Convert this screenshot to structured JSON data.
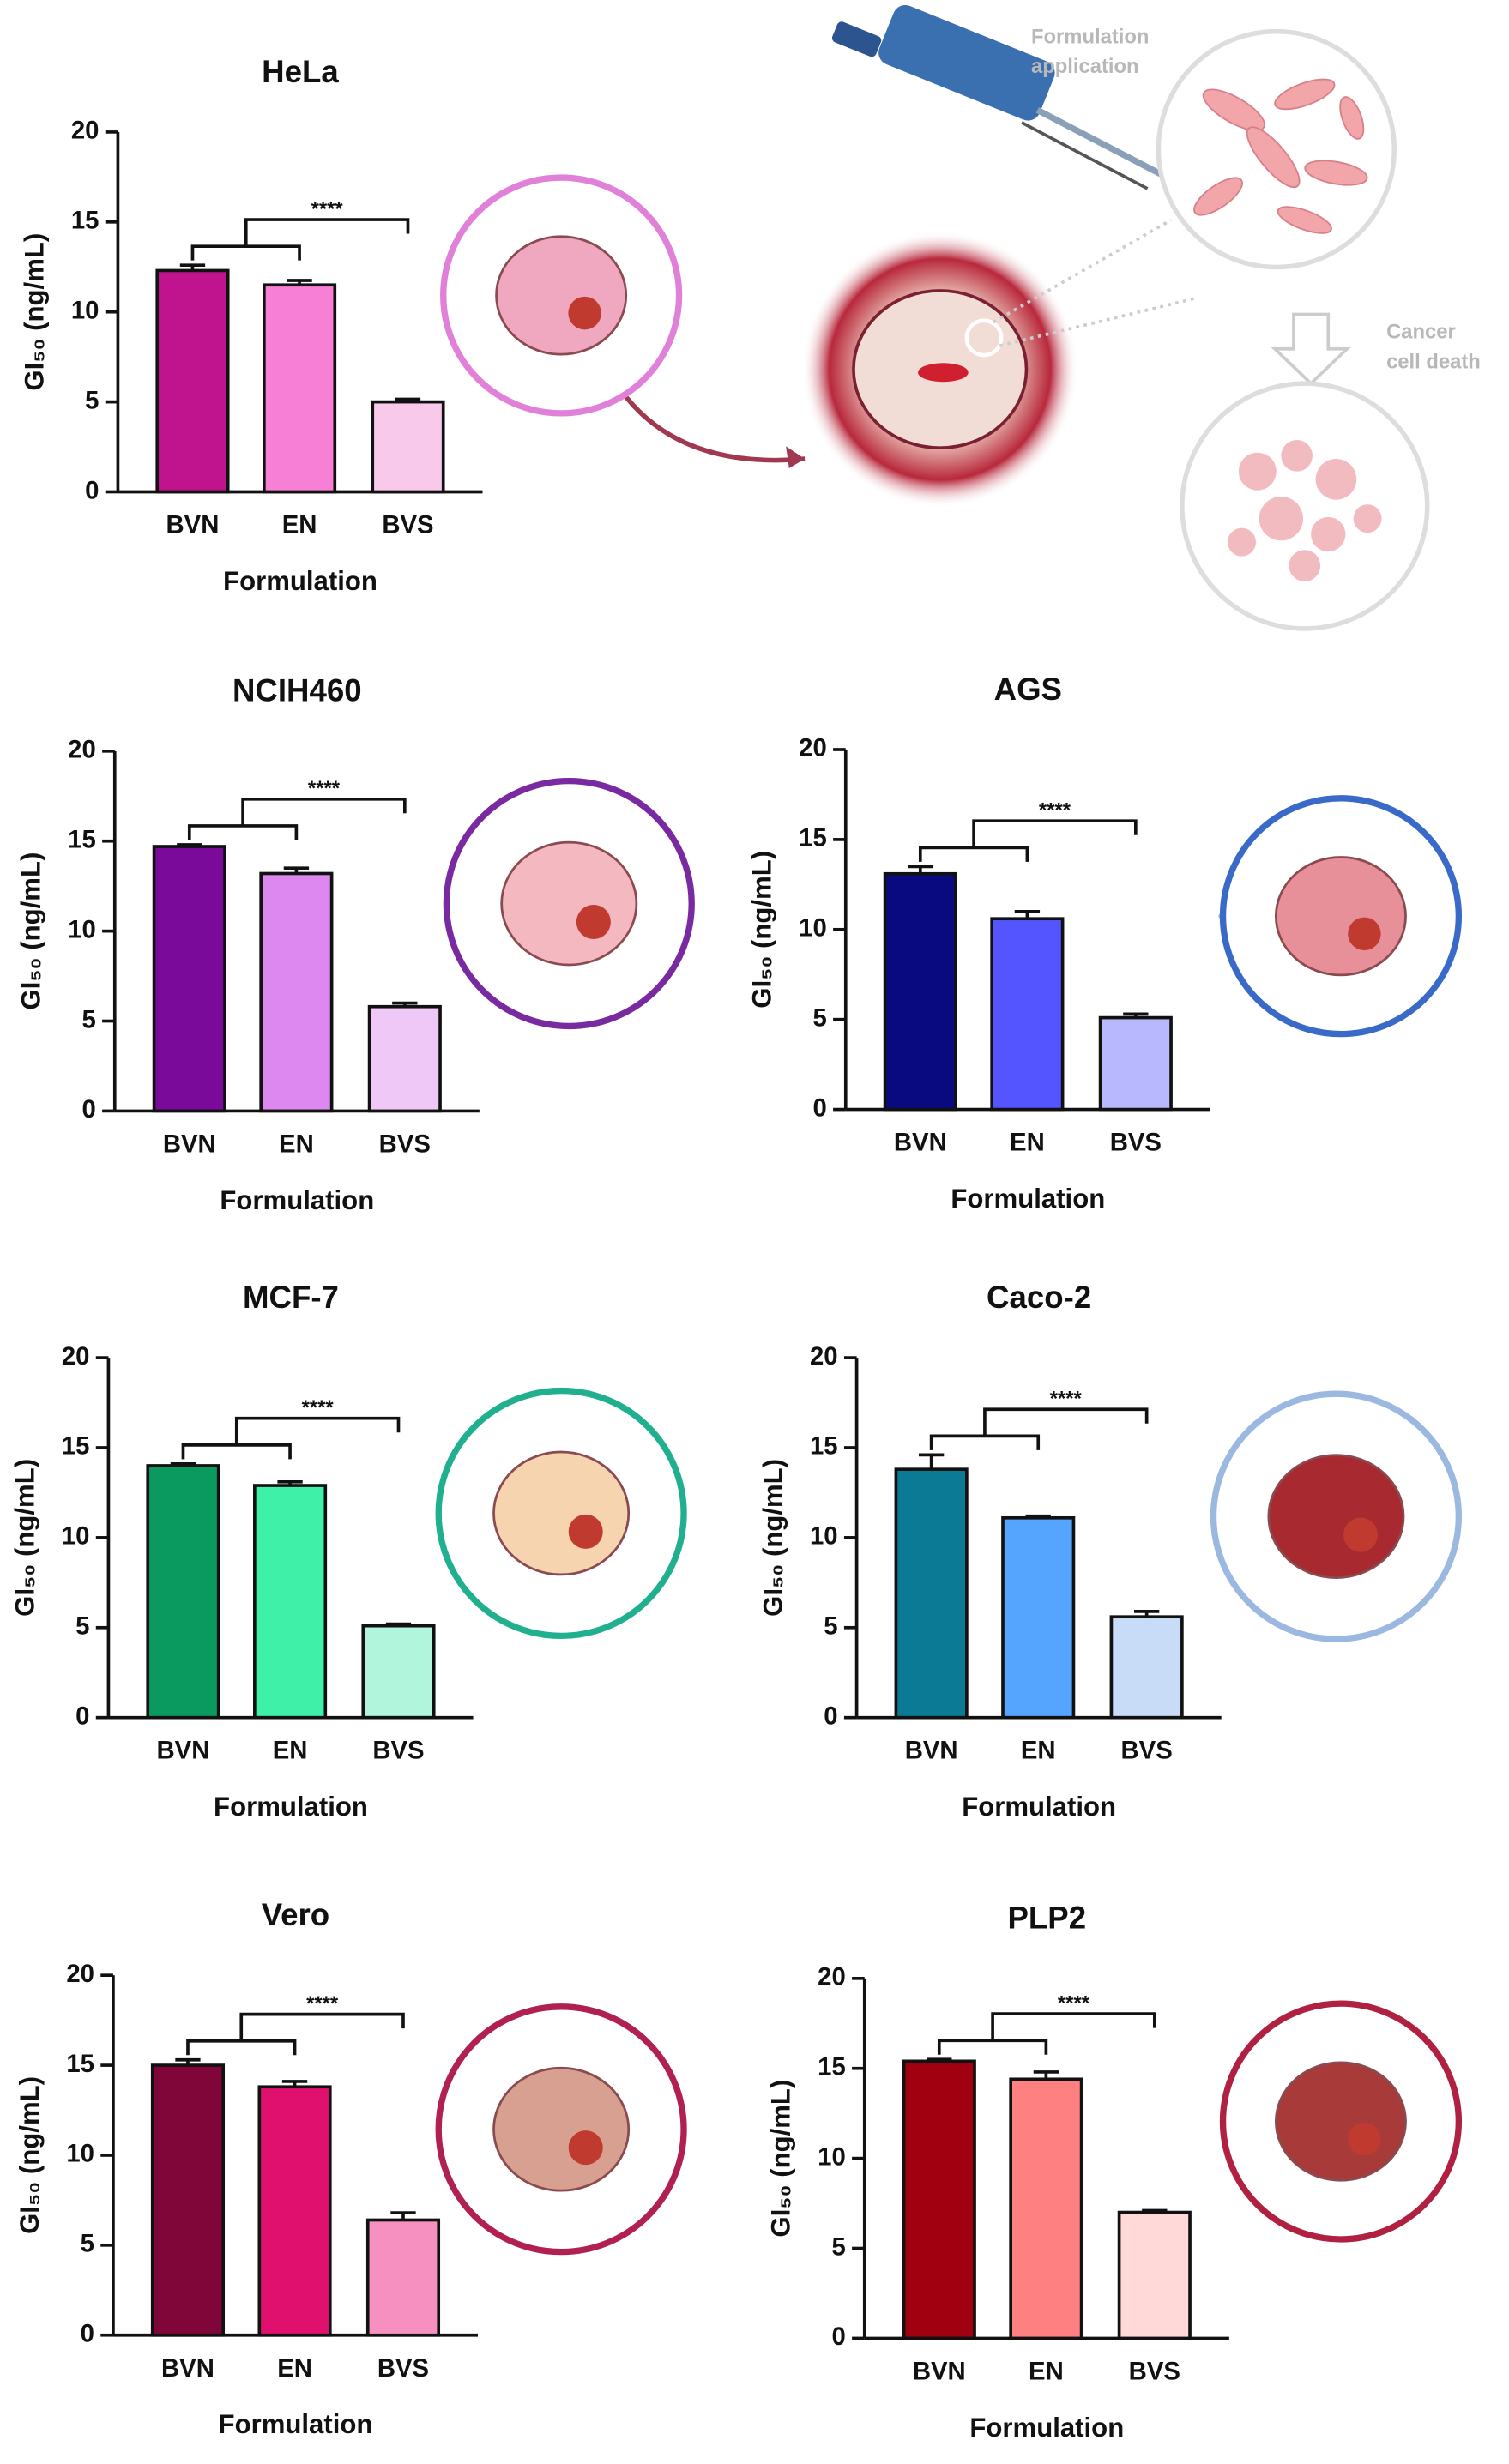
{
  "chart_data": [
    {
      "type": "bar",
      "title": "HeLa",
      "categories": [
        "BVN",
        "EN",
        "BVS"
      ],
      "values": [
        12.3,
        11.5,
        5.0
      ],
      "errors": [
        0.3,
        0.25,
        0.15
      ],
      "colors": [
        "#c0148f",
        "#f77fd6",
        "#f9c9ec"
      ],
      "ylim": [
        0,
        20
      ],
      "yticks": [
        0,
        5,
        10,
        15,
        20
      ],
      "x_label": "Formulation",
      "y_label": "GI₅₀ (ng/mL)",
      "annotation": "****"
    },
    {
      "type": "bar",
      "title": "NCIH460",
      "categories": [
        "BVN",
        "EN",
        "BVS"
      ],
      "values": [
        14.7,
        13.2,
        5.8
      ],
      "errors": [
        0.1,
        0.3,
        0.2
      ],
      "colors": [
        "#7a0a9a",
        "#dd88f0",
        "#efc8f7"
      ],
      "ylim": [
        0,
        20
      ],
      "yticks": [
        0,
        5,
        10,
        15,
        20
      ],
      "x_label": "Formulation",
      "y_label": "GI₅₀ (ng/mL)",
      "annotation": "****"
    },
    {
      "type": "bar",
      "title": "AGS",
      "categories": [
        "BVN",
        "EN",
        "BVS"
      ],
      "values": [
        13.1,
        10.6,
        5.1
      ],
      "errors": [
        0.4,
        0.4,
        0.2
      ],
      "colors": [
        "#0a0a80",
        "#5555ff",
        "#b8b8ff"
      ],
      "ylim": [
        0,
        20
      ],
      "yticks": [
        0,
        5,
        10,
        15,
        20
      ],
      "x_label": "Formulation",
      "y_label": "GI₅₀ (ng/mL)",
      "annotation": "****"
    },
    {
      "type": "bar",
      "title": "MCF-7",
      "categories": [
        "BVN",
        "EN",
        "BVS"
      ],
      "values": [
        14.0,
        12.9,
        5.1
      ],
      "errors": [
        0.1,
        0.2,
        0.1
      ],
      "colors": [
        "#0a9a60",
        "#3ef0a8",
        "#b0f5dc"
      ],
      "ylim": [
        0,
        20
      ],
      "yticks": [
        0,
        5,
        10,
        15,
        20
      ],
      "x_label": "Formulation",
      "y_label": "GI₅₀ (ng/mL)",
      "annotation": "****"
    },
    {
      "type": "bar",
      "title": "Caco-2",
      "categories": [
        "BVN",
        "EN",
        "BVS"
      ],
      "values": [
        13.8,
        11.1,
        5.6
      ],
      "errors": [
        0.8,
        0.1,
        0.3
      ],
      "colors": [
        "#0a7a95",
        "#55a5ff",
        "#c8dcf8"
      ],
      "ylim": [
        0,
        20
      ],
      "yticks": [
        0,
        5,
        10,
        15,
        20
      ],
      "x_label": "Formulation",
      "y_label": "GI₅₀ (ng/mL)",
      "annotation": "****"
    },
    {
      "type": "bar",
      "title": "Vero",
      "categories": [
        "BVN",
        "EN",
        "BVS"
      ],
      "values": [
        15.0,
        13.8,
        6.4
      ],
      "errors": [
        0.3,
        0.3,
        0.4
      ],
      "colors": [
        "#80063a",
        "#e0106e",
        "#f590c0"
      ],
      "ylim": [
        0,
        20
      ],
      "yticks": [
        0,
        5,
        10,
        15,
        20
      ],
      "x_label": "Formulation",
      "y_label": "GI₅₀ (ng/mL)",
      "annotation": "****"
    },
    {
      "type": "bar",
      "title": "PLP2",
      "categories": [
        "BVN",
        "EN",
        "BVS"
      ],
      "values": [
        15.4,
        14.4,
        7.0
      ],
      "errors": [
        0.1,
        0.4,
        0.1
      ],
      "colors": [
        "#a00010",
        "#ff8080",
        "#ffd8d8"
      ],
      "ylim": [
        0,
        20
      ],
      "yticks": [
        0,
        5,
        10,
        15,
        20
      ],
      "x_label": "Formulation",
      "y_label": "GI₅₀ (ng/mL)",
      "annotation": "****"
    }
  ],
  "illustration": {
    "application_label": [
      "Formulation",
      "application"
    ],
    "death_label": [
      "Cancer",
      "cell death"
    ]
  }
}
